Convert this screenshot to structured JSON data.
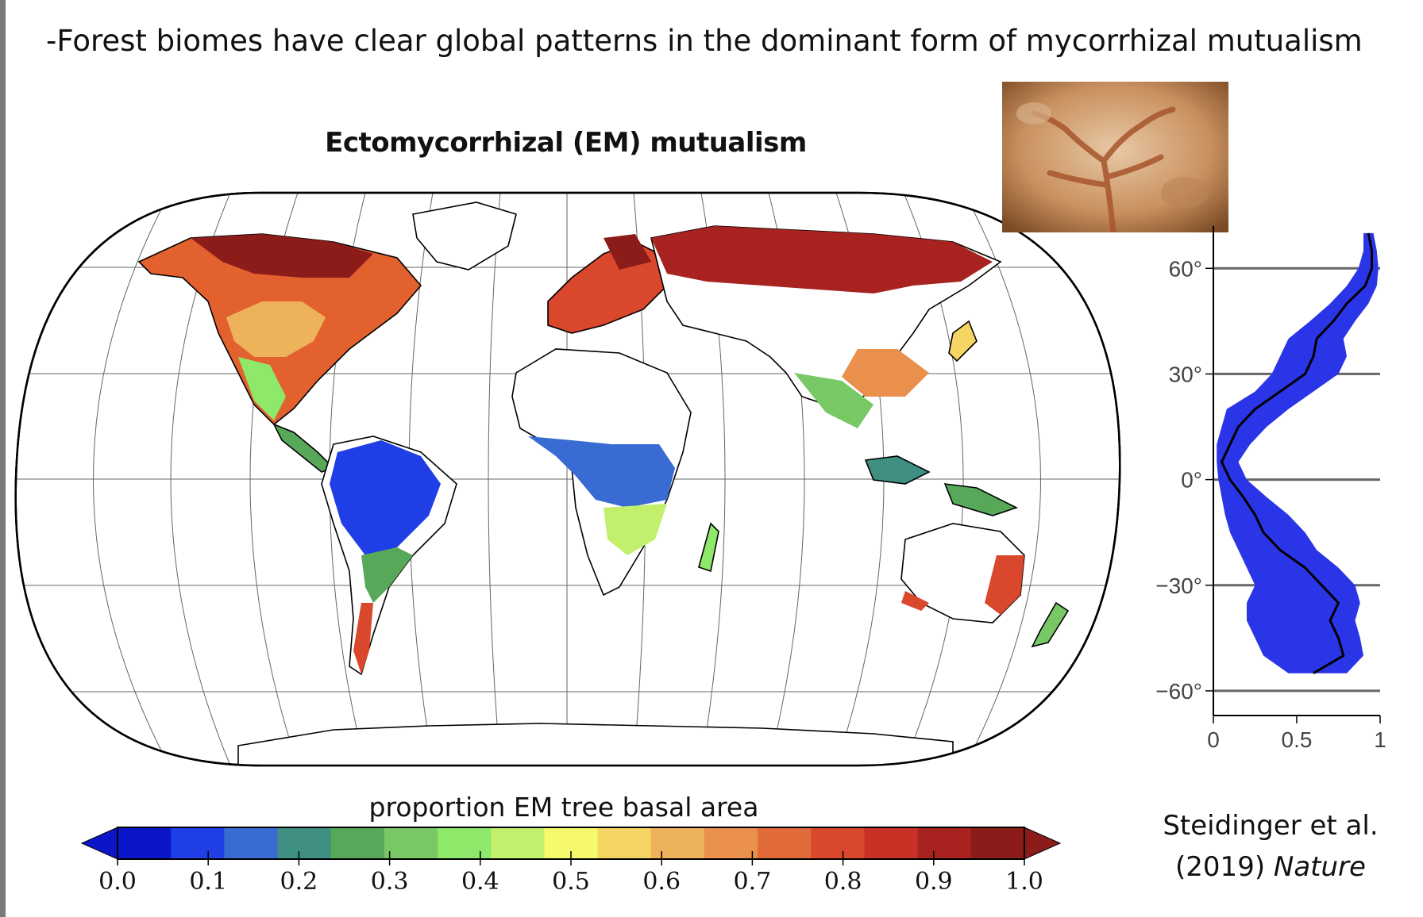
{
  "heading": "-Forest biomes have clear global patterns in the dominant form of mycorrhizal mutualism",
  "map": {
    "title": "Ectomycorrhizal (EM) mutualism",
    "colorbar_label": "proportion EM tree basal area"
  },
  "citation": {
    "line1": "Steidinger et al.",
    "line2_prefix": "(2019) ",
    "journal": "Nature"
  },
  "chart_data": [
    {
      "type": "heatmap",
      "title": "Ectomycorrhizal (EM) mutualism",
      "colorbar": {
        "label": "proportion EM tree basal area",
        "range": [
          0.0,
          1.0
        ],
        "ticks": [
          "0.0",
          "0.1",
          "0.2",
          "0.3",
          "0.4",
          "0.5",
          "0.6",
          "0.7",
          "0.8",
          "0.9",
          "1.0"
        ],
        "colors": [
          "#0b16c8",
          "#1f3ee6",
          "#3a6bd2",
          "#3f8f82",
          "#58a85a",
          "#78c866",
          "#8ee86a",
          "#c2f06c",
          "#f7f96c",
          "#f5d563",
          "#eeb25a",
          "#e8904c",
          "#e06a3a",
          "#d9472c",
          "#c73126",
          "#a82320",
          "#8b1c1a"
        ],
        "extend": "both"
      }
    },
    {
      "type": "area",
      "y_ticks": [
        "60°",
        "30°",
        "0°",
        "−30°",
        "−60°"
      ],
      "x_ticks": [
        "0",
        "0.5",
        "1"
      ],
      "xlim": [
        0,
        1
      ],
      "ylim": [
        -67,
        72
      ],
      "fill_color": "#2b35e8",
      "line_color": "#000000",
      "series": [
        {
          "lat": [
            70,
            65,
            60,
            55,
            50,
            45,
            40,
            35,
            30,
            25,
            20,
            15,
            10,
            5,
            0,
            -5,
            -10,
            -15,
            -20,
            -25,
            -30,
            -35,
            -40,
            -45,
            -50,
            -55
          ],
          "mean": [
            0.93,
            0.95,
            0.95,
            0.91,
            0.8,
            0.72,
            0.62,
            0.6,
            0.55,
            0.4,
            0.25,
            0.15,
            0.1,
            0.05,
            0.1,
            0.18,
            0.25,
            0.3,
            0.4,
            0.55,
            0.65,
            0.75,
            0.7,
            0.75,
            0.78,
            0.6
          ],
          "lower": [
            0.9,
            0.9,
            0.87,
            0.8,
            0.7,
            0.58,
            0.45,
            0.4,
            0.35,
            0.25,
            0.08,
            0.05,
            0.02,
            0.02,
            0.03,
            0.05,
            0.07,
            0.1,
            0.15,
            0.2,
            0.25,
            0.2,
            0.2,
            0.25,
            0.3,
            0.45
          ],
          "upper": [
            0.96,
            0.98,
            0.99,
            0.98,
            0.93,
            0.85,
            0.78,
            0.8,
            0.75,
            0.6,
            0.45,
            0.32,
            0.22,
            0.15,
            0.2,
            0.32,
            0.45,
            0.55,
            0.62,
            0.75,
            0.85,
            0.88,
            0.85,
            0.88,
            0.9,
            0.8
          ]
        }
      ]
    }
  ]
}
